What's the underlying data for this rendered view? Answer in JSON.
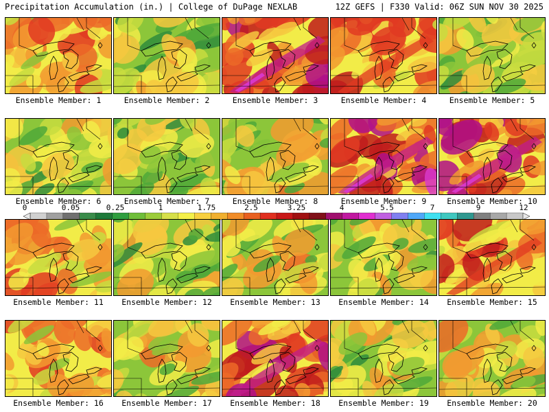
{
  "header": {
    "left": "Precipitation Accumulation (in.) | College of DuPage NEXLAB",
    "right": "12Z GEFS | F330 Valid: 06Z SUN NOV 30 2025"
  },
  "members": [
    {
      "label": "Ensemble Member: 1",
      "intensity": 0.62
    },
    {
      "label": "Ensemble Member: 2",
      "intensity": 0.35
    },
    {
      "label": "Ensemble Member: 3",
      "intensity": 0.85
    },
    {
      "label": "Ensemble Member: 4",
      "intensity": 0.7
    },
    {
      "label": "Ensemble Member: 5",
      "intensity": 0.38
    },
    {
      "label": "Ensemble Member: 6",
      "intensity": 0.4
    },
    {
      "label": "Ensemble Member: 7",
      "intensity": 0.38
    },
    {
      "label": "Ensemble Member: 8",
      "intensity": 0.45
    },
    {
      "label": "Ensemble Member: 9",
      "intensity": 0.9
    },
    {
      "label": "Ensemble Member: 10",
      "intensity": 0.85
    },
    {
      "label": "Ensemble Member: 11",
      "intensity": 0.62
    },
    {
      "label": "Ensemble Member: 12",
      "intensity": 0.36
    },
    {
      "label": "Ensemble Member: 13",
      "intensity": 0.48
    },
    {
      "label": "Ensemble Member: 14",
      "intensity": 0.42
    },
    {
      "label": "Ensemble Member: 15",
      "intensity": 0.72
    },
    {
      "label": "Ensemble Member: 16",
      "intensity": 0.62
    },
    {
      "label": "Ensemble Member: 17",
      "intensity": 0.5
    },
    {
      "label": "Ensemble Member: 18",
      "intensity": 0.82
    },
    {
      "label": "Ensemble Member: 19",
      "intensity": 0.4
    },
    {
      "label": "Ensemble Member: 20",
      "intensity": 0.5
    }
  ],
  "colorbar": {
    "tick_labels": [
      "0",
      "0.05",
      "0.25",
      "1",
      "1.75",
      "2.5",
      "3.25",
      "4",
      "5.5",
      "7",
      "9",
      "12"
    ],
    "colors": [
      "#d0d0d0",
      "#a0a0a0",
      "#707070",
      "#3a8c4a",
      "#1e7a3a",
      "#2f9e3f",
      "#6fbe3a",
      "#9ccc3a",
      "#d6e04a",
      "#f4f04a",
      "#f8d040",
      "#f0b030",
      "#f08c28",
      "#e86020",
      "#e03020",
      "#c81818",
      "#a01010",
      "#801018",
      "#a0106e",
      "#c018a0",
      "#e030d0",
      "#c060e0",
      "#8080f0",
      "#50a8f8",
      "#40e0f0",
      "#40c8c0",
      "#309890",
      "#808080",
      "#a8a8a8",
      "#c8c8c8"
    ]
  }
}
